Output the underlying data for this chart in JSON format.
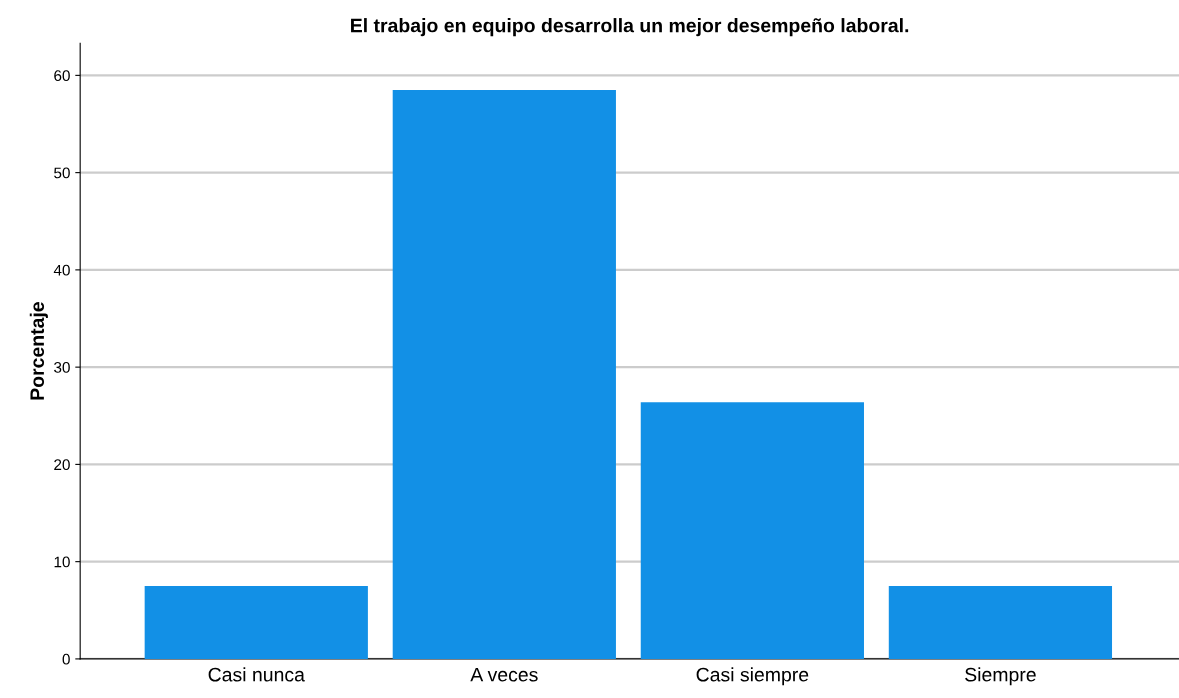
{
  "chart_data": {
    "type": "bar",
    "title": "El trabajo en equipo desarrolla un mejor desempeño laboral.",
    "ylabel": "Porcentaje",
    "categories": [
      "Casi nunca",
      "A veces",
      "Casi siempre",
      "Siempre"
    ],
    "values": [
      7.5,
      58.5,
      26.4,
      7.5
    ],
    "color": "#1290e6",
    "ylim": [
      0,
      63.3
    ],
    "yticks": [
      0,
      10,
      20,
      30,
      40,
      50,
      60
    ],
    "grid": "y",
    "legend": false
  }
}
